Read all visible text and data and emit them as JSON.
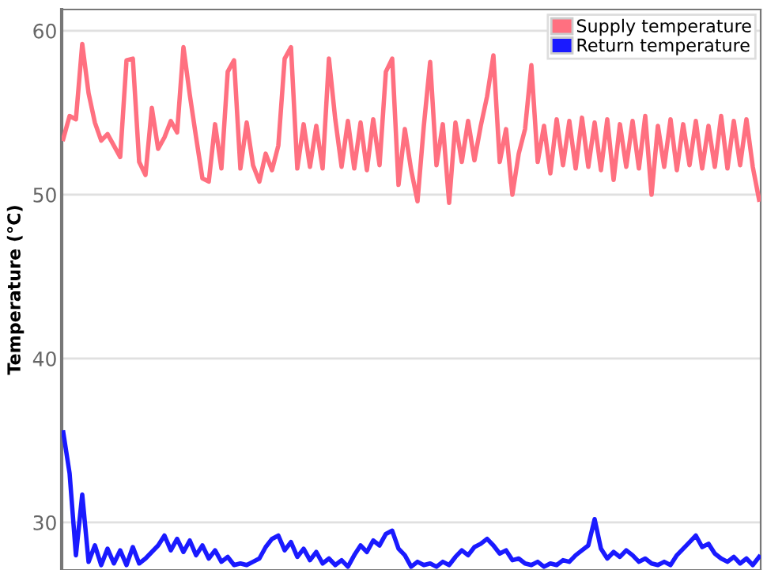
{
  "chart_data": {
    "type": "line",
    "ylabel": "Temperature (°C)",
    "categories": [
      null,
      null,
      null,
      null,
      null,
      null,
      null,
      null,
      null,
      null,
      null,
      null,
      null,
      null,
      null,
      null,
      null,
      null,
      null,
      null,
      null,
      null,
      null,
      null,
      null,
      null,
      null,
      null,
      null,
      null,
      null,
      null,
      null,
      null,
      null,
      null,
      null,
      null,
      null,
      null,
      null,
      null,
      null,
      null,
      null,
      null,
      null,
      null,
      null,
      null,
      null,
      null,
      null,
      null,
      null,
      null,
      null,
      null,
      null,
      null,
      null,
      null,
      null,
      null,
      null,
      null,
      null,
      null,
      null,
      null,
      null,
      null,
      null,
      null,
      null,
      null,
      null,
      null,
      null,
      null,
      null,
      null,
      null,
      null,
      null,
      null,
      null,
      null,
      null,
      null,
      null,
      null,
      null,
      null,
      null,
      null,
      null,
      null,
      null,
      null,
      null,
      null,
      null,
      null,
      null,
      null,
      null,
      null,
      null,
      null,
      null
    ],
    "series": [
      {
        "name": "Supply temperature",
        "color": "#ff7080",
        "values": [
          53.4,
          54.8,
          54.6,
          59.2,
          56.2,
          54.4,
          53.3,
          53.7,
          53.0,
          52.3,
          58.2,
          58.3,
          52.0,
          51.2,
          55.3,
          52.8,
          53.5,
          54.5,
          53.8,
          59.0,
          56.1,
          53.5,
          51.0,
          50.8,
          54.3,
          51.6,
          57.5,
          58.2,
          51.6,
          54.4,
          51.8,
          50.8,
          52.5,
          51.5,
          53.0,
          58.3,
          59.0,
          51.6,
          54.3,
          51.7,
          54.2,
          51.6,
          58.3,
          54.6,
          51.7,
          54.5,
          51.6,
          54.4,
          51.5,
          54.6,
          51.8,
          57.5,
          58.3,
          50.6,
          54.0,
          51.5,
          49.6,
          54.2,
          58.1,
          51.8,
          54.3,
          49.5,
          54.4,
          52.0,
          54.5,
          52.1,
          54.2,
          56.0,
          58.5,
          52.0,
          54.0,
          50.0,
          52.5,
          54.0,
          57.9,
          52.0,
          54.2,
          51.3,
          54.6,
          51.8,
          54.5,
          51.6,
          54.7,
          51.7,
          54.4,
          51.5,
          54.6,
          50.9,
          54.3,
          51.7,
          54.5,
          51.6,
          54.8,
          50.0,
          54.2,
          51.7,
          54.6,
          51.5,
          54.3,
          51.8,
          54.5,
          51.6,
          54.2,
          51.7,
          54.8,
          51.6,
          54.5,
          51.8,
          54.6,
          51.7,
          49.7
        ]
      },
      {
        "name": "Return temperature",
        "color": "#1a1aff",
        "values": [
          35.5,
          33.0,
          28.0,
          31.7,
          27.6,
          28.6,
          27.4,
          28.4,
          27.5,
          28.3,
          27.4,
          28.5,
          27.5,
          27.8,
          28.2,
          28.6,
          29.2,
          28.3,
          29.0,
          28.2,
          28.9,
          28.0,
          28.6,
          27.8,
          28.3,
          27.6,
          27.9,
          27.4,
          27.5,
          27.4,
          27.6,
          27.8,
          28.5,
          29.0,
          29.2,
          28.3,
          28.8,
          27.9,
          28.4,
          27.7,
          28.2,
          27.5,
          27.8,
          27.4,
          27.7,
          27.3,
          28.0,
          28.6,
          28.2,
          28.9,
          28.6,
          29.3,
          29.5,
          28.4,
          28.0,
          27.3,
          27.6,
          27.4,
          27.5,
          27.3,
          27.6,
          27.4,
          27.9,
          28.3,
          28.0,
          28.5,
          28.7,
          29.0,
          28.6,
          28.1,
          28.3,
          27.7,
          27.8,
          27.5,
          27.4,
          27.6,
          27.3,
          27.5,
          27.4,
          27.7,
          27.6,
          28.0,
          28.3,
          28.6,
          30.2,
          28.4,
          27.8,
          28.2,
          27.9,
          28.3,
          28.0,
          27.6,
          27.8,
          27.5,
          27.4,
          27.6,
          27.4,
          28.0,
          28.4,
          28.8,
          29.2,
          28.5,
          28.7,
          28.1,
          27.8,
          27.6,
          27.9,
          27.5,
          27.8,
          27.4,
          27.9
        ]
      }
    ],
    "ylim": [
      27.1,
      61.3
    ],
    "yticks": [
      30,
      40,
      50,
      60
    ],
    "grid": "y",
    "legend": "top right",
    "tick_labels": "y",
    "marker": "none",
    "line_style": "solid"
  }
}
